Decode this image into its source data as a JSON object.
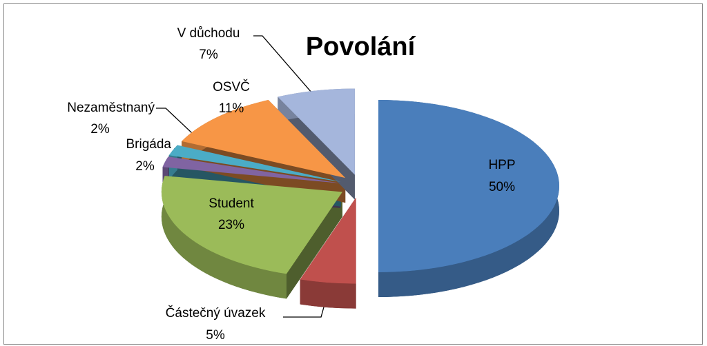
{
  "chart_data": {
    "type": "pie",
    "title": "Povolání",
    "categories": [
      "HPP",
      "Částečný úvazek",
      "Student",
      "Brigáda",
      "Nezaměstnaný",
      "OSVČ",
      "V důchodu"
    ],
    "values": [
      50,
      5,
      23,
      2,
      2,
      11,
      7
    ],
    "value_labels": [
      "50%",
      "5%",
      "23%",
      "2%",
      "2%",
      "11%",
      "7%"
    ],
    "colors": [
      "#4a7ebb",
      "#c0504d",
      "#9bbb59",
      "#8064a2",
      "#4bacc6",
      "#f79646",
      "#a5b6dc"
    ]
  }
}
